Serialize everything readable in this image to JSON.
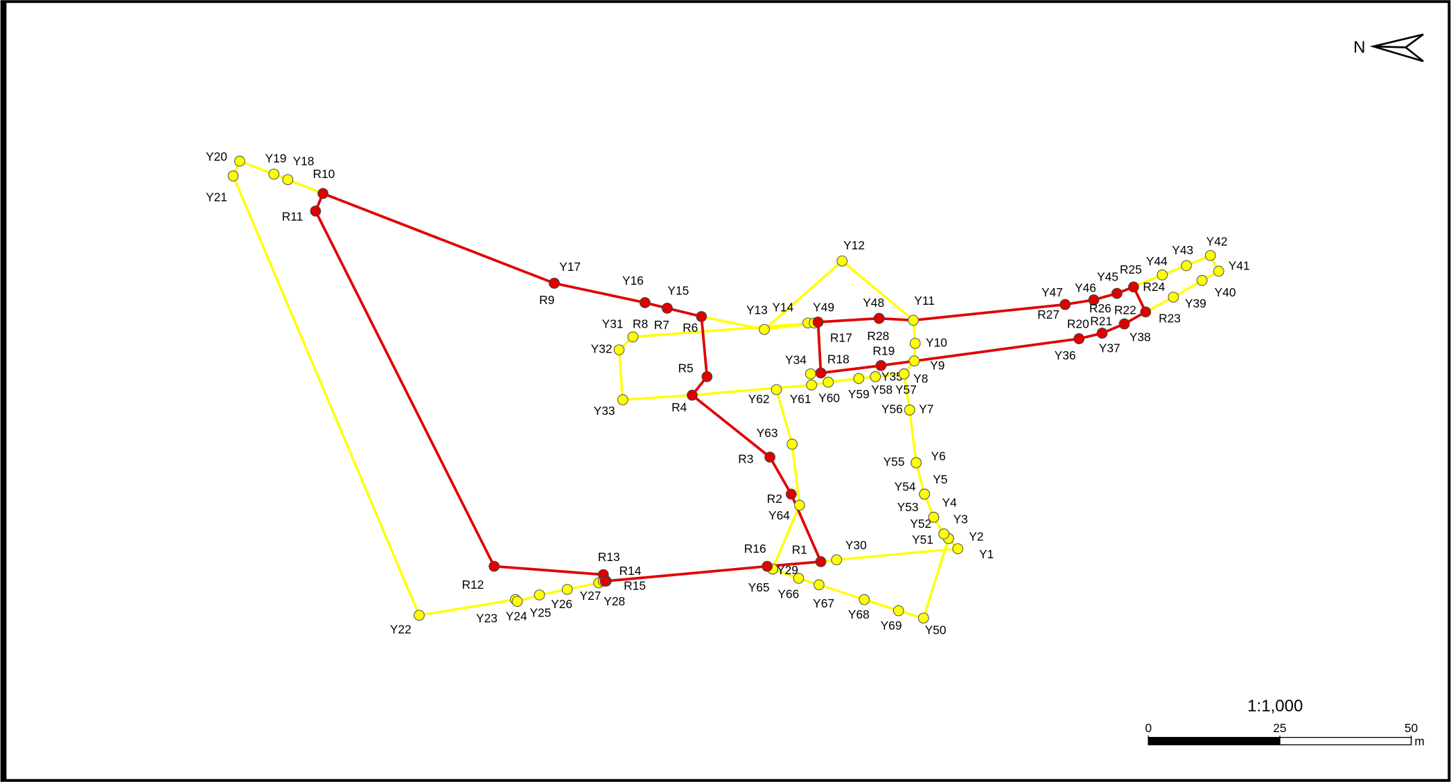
{
  "north": "N",
  "scale": "1:1,000",
  "scale_bar": {
    "ticks": [
      0,
      25,
      50
    ],
    "unit": "m"
  },
  "red_points": [
    "R1",
    "R2",
    "R3",
    "R4",
    "R5",
    "R6",
    "R7",
    "R8",
    "R9",
    "R10",
    "R11",
    "R12",
    "R13",
    "R14",
    "R15",
    "R16",
    "R17",
    "R18",
    "R19",
    "R20",
    "R21",
    "R22",
    "R23",
    "R24",
    "R25",
    "R26",
    "R27",
    "R28"
  ],
  "yellow_points": [
    "Y1",
    "Y2",
    "Y3",
    "Y4",
    "Y5",
    "Y6",
    "Y7",
    "Y8",
    "Y9",
    "Y10",
    "Y11",
    "Y12",
    "Y13",
    "Y14",
    "Y15",
    "Y16",
    "Y17",
    "Y18",
    "Y19",
    "Y20",
    "Y21",
    "Y22",
    "Y23",
    "Y24",
    "Y25",
    "Y26",
    "Y27",
    "Y28",
    "Y29",
    "Y30",
    "Y31",
    "Y32",
    "Y33",
    "Y34",
    "Y35",
    "Y36",
    "Y37",
    "Y38",
    "Y39",
    "Y40",
    "Y41",
    "Y42",
    "Y43",
    "Y44",
    "Y45",
    "Y46",
    "Y47",
    "Y48",
    "Y49",
    "Y50",
    "Y51",
    "Y52",
    "Y53",
    "Y54",
    "Y55",
    "Y56",
    "Y57",
    "Y58",
    "Y59",
    "Y60",
    "Y61",
    "Y62",
    "Y63",
    "Y64",
    "Y65",
    "Y66",
    "Y67",
    "Y68",
    "Y69"
  ]
}
